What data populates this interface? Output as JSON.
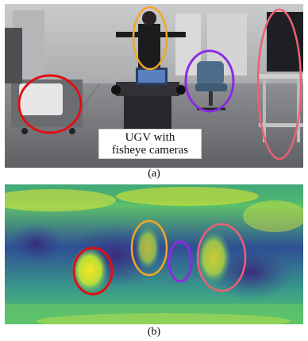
{
  "panel_a": {
    "label_line1": "UGV with",
    "label_line2": "fisheye cameras",
    "caption": "(a)"
  },
  "panel_b": {
    "caption": "(b)"
  },
  "colors": {
    "highlight_red": "#e01010",
    "highlight_orange": "#f5a623",
    "highlight_purple": "#8a2be2",
    "highlight_pink": "#f06070"
  }
}
